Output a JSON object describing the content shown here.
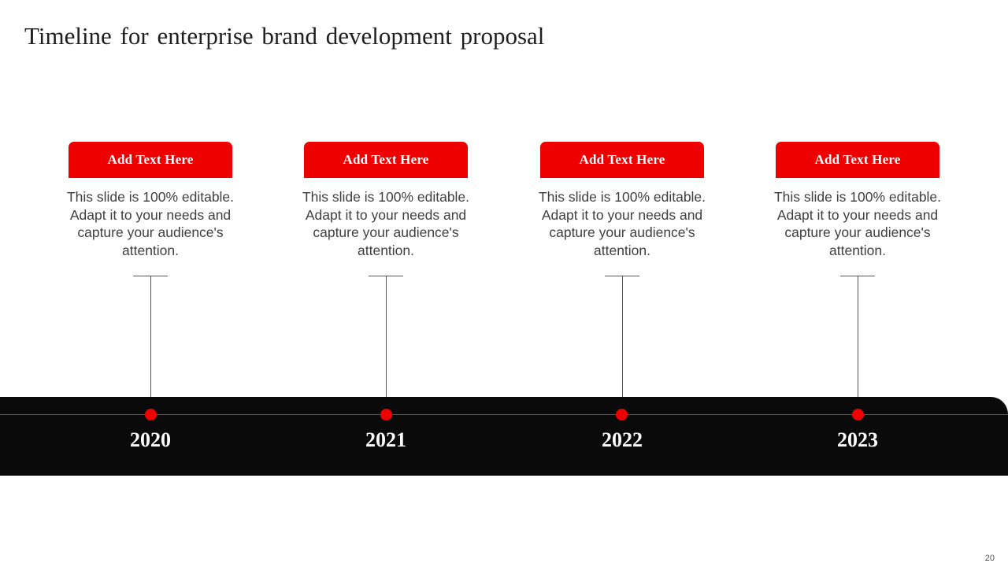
{
  "slide": {
    "title": "Timeline for enterprise brand development proposal",
    "page_number": "20"
  },
  "colors": {
    "accent": "#ee0000",
    "band": "#0a0a0a",
    "body_text": "#3f3f3f"
  },
  "timeline": [
    {
      "heading": "Add Text Here",
      "body": "This slide is 100% editable. Adapt it to your needs and capture your audience's attention.",
      "year": "2020"
    },
    {
      "heading": "Add Text Here",
      "body": "This slide is 100% editable. Adapt it to your needs and capture your audience's attention.",
      "year": "2021"
    },
    {
      "heading": "Add Text Here",
      "body": "This slide is 100% editable. Adapt it to your needs and capture your audience's attention.",
      "year": "2022"
    },
    {
      "heading": "Add Text Here",
      "body": "This slide is 100% editable. Adapt it to your needs and capture your audience's attention.",
      "year": "2023"
    }
  ]
}
